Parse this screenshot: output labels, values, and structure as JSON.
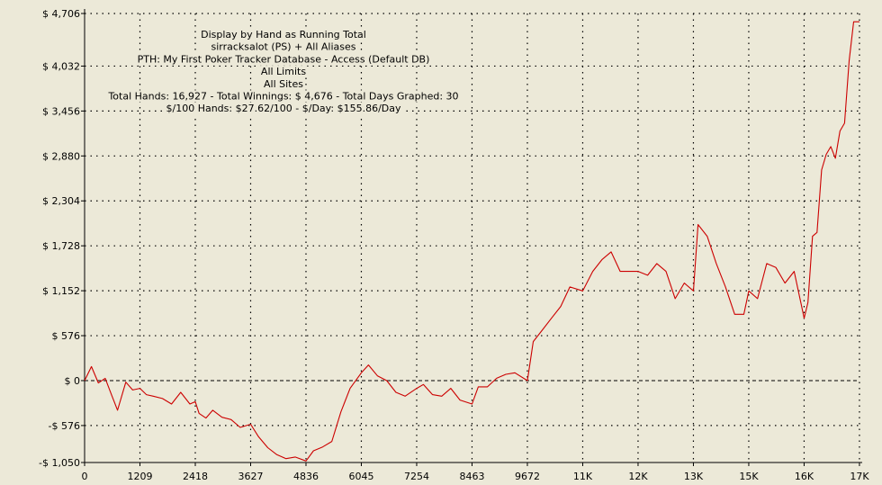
{
  "chart_data": {
    "type": "line",
    "info_lines": [
      "Display by Hand as Running Total",
      "sirracksalot (PS) + All Aliases",
      "PTH: My First Poker Tracker Database - Access (Default DB)",
      "All Limits",
      "All Sites",
      "Total Hands: 16,927 - Total Winnings: $ 4,676 - Total Days Graphed: 30",
      "$/100 Hands: $27.62/100 - $/Day: $155.86/Day"
    ],
    "y_ticks": [
      {
        "value": 4706,
        "label": "$ 4,706"
      },
      {
        "value": 4032,
        "label": "$ 4,032"
      },
      {
        "value": 3456,
        "label": "$ 3,456"
      },
      {
        "value": 2880,
        "label": "$ 2,880"
      },
      {
        "value": 2304,
        "label": "$ 2,304"
      },
      {
        "value": 1728,
        "label": "$ 1,728"
      },
      {
        "value": 1152,
        "label": "$ 1,152"
      },
      {
        "value": 576,
        "label": "$ 576"
      },
      {
        "value": 0,
        "label": "$ 0"
      },
      {
        "value": -576,
        "label": "-$ 576"
      },
      {
        "value": -1050,
        "label": "-$ 1,050"
      }
    ],
    "x_ticks": [
      {
        "value": 0,
        "label": "0"
      },
      {
        "value": 1209,
        "label": "1209"
      },
      {
        "value": 2418,
        "label": "2418"
      },
      {
        "value": 3627,
        "label": "3627"
      },
      {
        "value": 4836,
        "label": "4836"
      },
      {
        "value": 6045,
        "label": "6045"
      },
      {
        "value": 7254,
        "label": "7254"
      },
      {
        "value": 8463,
        "label": "8463"
      },
      {
        "value": 9672,
        "label": "9672"
      },
      {
        "value": 10881,
        "label": "11K"
      },
      {
        "value": 12090,
        "label": "12K"
      },
      {
        "value": 13299,
        "label": "13K"
      },
      {
        "value": 14508,
        "label": "15K"
      },
      {
        "value": 15717,
        "label": "16K"
      },
      {
        "value": 16926,
        "label": "17K"
      }
    ],
    "xlim": [
      0,
      16927
    ],
    "ylim": [
      -1050,
      4706
    ],
    "grid": true,
    "series": [
      {
        "color": "#cc0000",
        "x": [
          0,
          150,
          300,
          450,
          600,
          720,
          900,
          1050,
          1209,
          1350,
          1500,
          1700,
          1900,
          2100,
          2300,
          2418,
          2500,
          2650,
          2800,
          3000,
          3200,
          3400,
          3627,
          3800,
          4000,
          4200,
          4400,
          4600,
          4836,
          5000,
          5200,
          5400,
          5600,
          5800,
          6045,
          6200,
          6400,
          6600,
          6800,
          7000,
          7254,
          7400,
          7600,
          7800,
          8000,
          8200,
          8463,
          8600,
          8800,
          9000,
          9200,
          9400,
          9672,
          9800,
          10000,
          10200,
          10400,
          10600,
          10881,
          11100,
          11300,
          11500,
          11700,
          12090,
          12300,
          12500,
          12700,
          12900,
          13100,
          13299,
          13400,
          13600,
          13800,
          14000,
          14200,
          14400,
          14508,
          14700,
          14900,
          15100,
          15300,
          15500,
          15717,
          15800,
          15900,
          16000,
          16100,
          16200,
          16300,
          16400,
          16500,
          16600,
          16700,
          16800,
          16927
        ],
        "y": [
          0,
          180,
          -30,
          30,
          -200,
          -380,
          -20,
          -120,
          -100,
          -180,
          -200,
          -230,
          -300,
          -150,
          -300,
          -270,
          -420,
          -480,
          -380,
          -470,
          -500,
          -600,
          -560,
          -720,
          -860,
          -950,
          -1000,
          -980,
          -1030,
          -900,
          -850,
          -780,
          -400,
          -100,
          100,
          200,
          60,
          0,
          -150,
          -200,
          -100,
          -50,
          -180,
          -200,
          -100,
          -250,
          -300,
          -80,
          -80,
          30,
          80,
          100,
          0,
          500,
          650,
          800,
          950,
          1200,
          1150,
          1400,
          1550,
          1650,
          1400,
          1400,
          1350,
          1500,
          1400,
          1050,
          1250,
          1150,
          2000,
          1850,
          1500,
          1200,
          850,
          850,
          1150,
          1050,
          1500,
          1450,
          1250,
          1400,
          800,
          1000,
          1850,
          1900,
          2700,
          2900,
          3000,
          2850,
          3200,
          3300,
          4100,
          4600,
          4600
        ]
      }
    ]
  }
}
